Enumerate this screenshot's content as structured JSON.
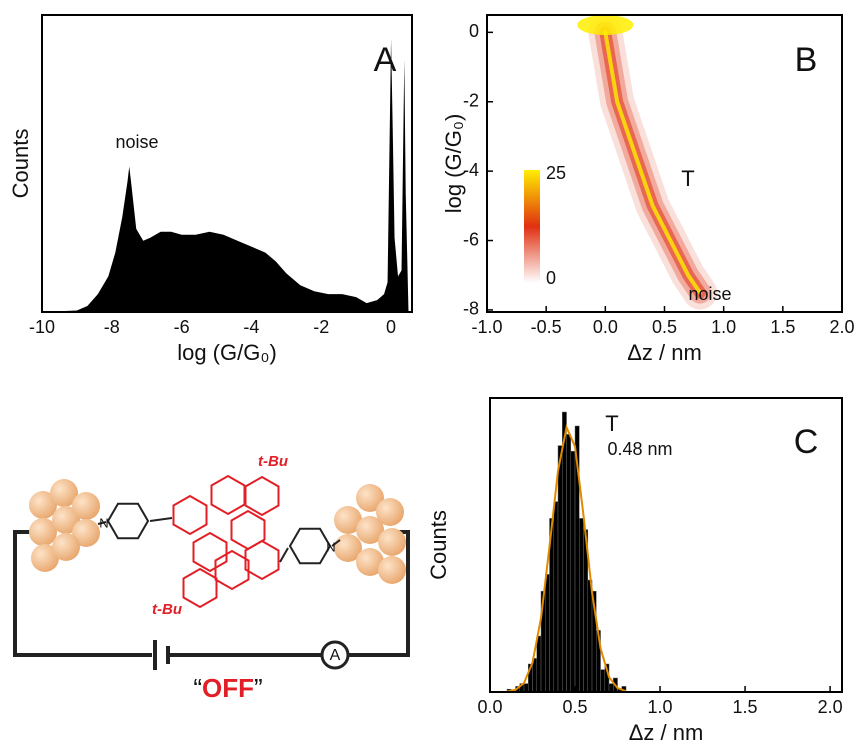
{
  "chart_data": [
    {
      "type": "area",
      "panel_label": "A",
      "xlabel": "log (G/G₀)",
      "ylabel": "Counts",
      "color": "#000000",
      "annotations": [
        "noise"
      ],
      "x": [
        -10,
        -9,
        -8.7,
        -8.4,
        -8.1,
        -7.9,
        -7.7,
        -7.55,
        -7.5,
        -7.45,
        -7.3,
        -7.1,
        -6.9,
        -6.6,
        -6.3,
        -6,
        -5.6,
        -5.2,
        -4.8,
        -4.4,
        -4,
        -3.6,
        -3.3,
        -3,
        -2.6,
        -2.2,
        -1.8,
        -1.4,
        -1.0,
        -0.7,
        -0.4,
        -0.2,
        -0.1,
        0,
        0.05,
        0.1,
        0.2,
        0.3,
        0.38,
        0.42,
        0.5
      ],
      "values": [
        0,
        0.5,
        2,
        6,
        12,
        20,
        32,
        44,
        49,
        44,
        28,
        24,
        25,
        27,
        27,
        26,
        26,
        27,
        26,
        24,
        22,
        20,
        17,
        13,
        9,
        7,
        6,
        6,
        5,
        3,
        4,
        6,
        10,
        92,
        60,
        25,
        12,
        14,
        85,
        40,
        0
      ],
      "xlim": [
        -10,
        0.6
      ],
      "ylim": [
        0,
        100
      ],
      "xticks": [
        -10,
        -8,
        -6,
        -4,
        -2,
        0
      ]
    },
    {
      "type": "density",
      "panel_label": "B",
      "xlabel": "Δz / nm",
      "ylabel": "log (G/G₀)",
      "annotations": [
        "T",
        "noise"
      ],
      "x": [
        0,
        0.05,
        0.1,
        0.2,
        0.3,
        0.4,
        0.55,
        0.7,
        0.8
      ],
      "values": [
        0,
        -1,
        -2,
        -3,
        -4,
        -5,
        -6,
        -7,
        -7.5
      ],
      "colorbar": {
        "ticks": [
          0,
          25
        ],
        "colors": [
          "#ffffff",
          "#e03010",
          "#ffee00"
        ]
      },
      "xlim": [
        -1,
        2
      ],
      "ylim": [
        -8.06,
        0.5
      ],
      "xticks": [
        {
          "value": -1,
          "label": "-1.0"
        },
        {
          "value": -0.5,
          "label": "-0.5"
        },
        {
          "value": 0,
          "label": "0.0"
        },
        {
          "value": 0.5,
          "label": "0.5"
        },
        {
          "value": 1,
          "label": "1.0"
        },
        {
          "value": 1.5,
          "label": "1.5"
        },
        {
          "value": 2,
          "label": "2.0"
        }
      ],
      "yticks": [
        0,
        -2,
        -4,
        -6,
        -8
      ]
    },
    {
      "type": "histogram",
      "panel_label": "C",
      "xlabel": "Δz / nm",
      "ylabel": "Counts",
      "color": "#000000",
      "annotations": [
        "T",
        "0.48 nm"
      ],
      "bins": [
        0.1,
        0.125,
        0.15,
        0.175,
        0.2,
        0.225,
        0.25,
        0.275,
        0.3,
        0.325,
        0.35,
        0.375,
        0.4,
        0.425,
        0.45,
        0.475,
        0.5,
        0.525,
        0.55,
        0.575,
        0.6,
        0.625,
        0.65,
        0.675,
        0.7,
        0.725,
        0.75,
        0.775,
        0.8
      ],
      "values": [
        1,
        0,
        2,
        3,
        3,
        10,
        12,
        20,
        36,
        42,
        62,
        68,
        88,
        100,
        92,
        86,
        95,
        62,
        58,
        40,
        36,
        22,
        8,
        10,
        3,
        5,
        1,
        2
      ],
      "fit": {
        "color": "#e08a00",
        "x": [
          0.1,
          0.15,
          0.2,
          0.25,
          0.3,
          0.35,
          0.4,
          0.45,
          0.5,
          0.55,
          0.6,
          0.65,
          0.7,
          0.75,
          0.8
        ],
        "values": [
          0.15,
          0.8,
          3.2,
          10.5,
          26.4,
          52,
          79,
          94.5,
          87.7,
          63,
          35.6,
          15.6,
          5.3,
          1.4,
          0.3
        ]
      },
      "xlim": [
        0,
        2.07
      ],
      "ylim": [
        0,
        105
      ],
      "xticks": [
        {
          "value": 0,
          "label": "0.0"
        },
        {
          "value": 0.5,
          "label": "0.5"
        },
        {
          "value": 1,
          "label": "1.0"
        },
        {
          "value": 1.5,
          "label": "1.5"
        },
        {
          "value": 2,
          "label": "2.0"
        }
      ]
    }
  ],
  "diagram": {
    "labels": [
      "t-Bu",
      "t-Bu",
      "N",
      "N",
      "A"
    ],
    "state": [
      "“",
      "OFF",
      "”"
    ]
  }
}
